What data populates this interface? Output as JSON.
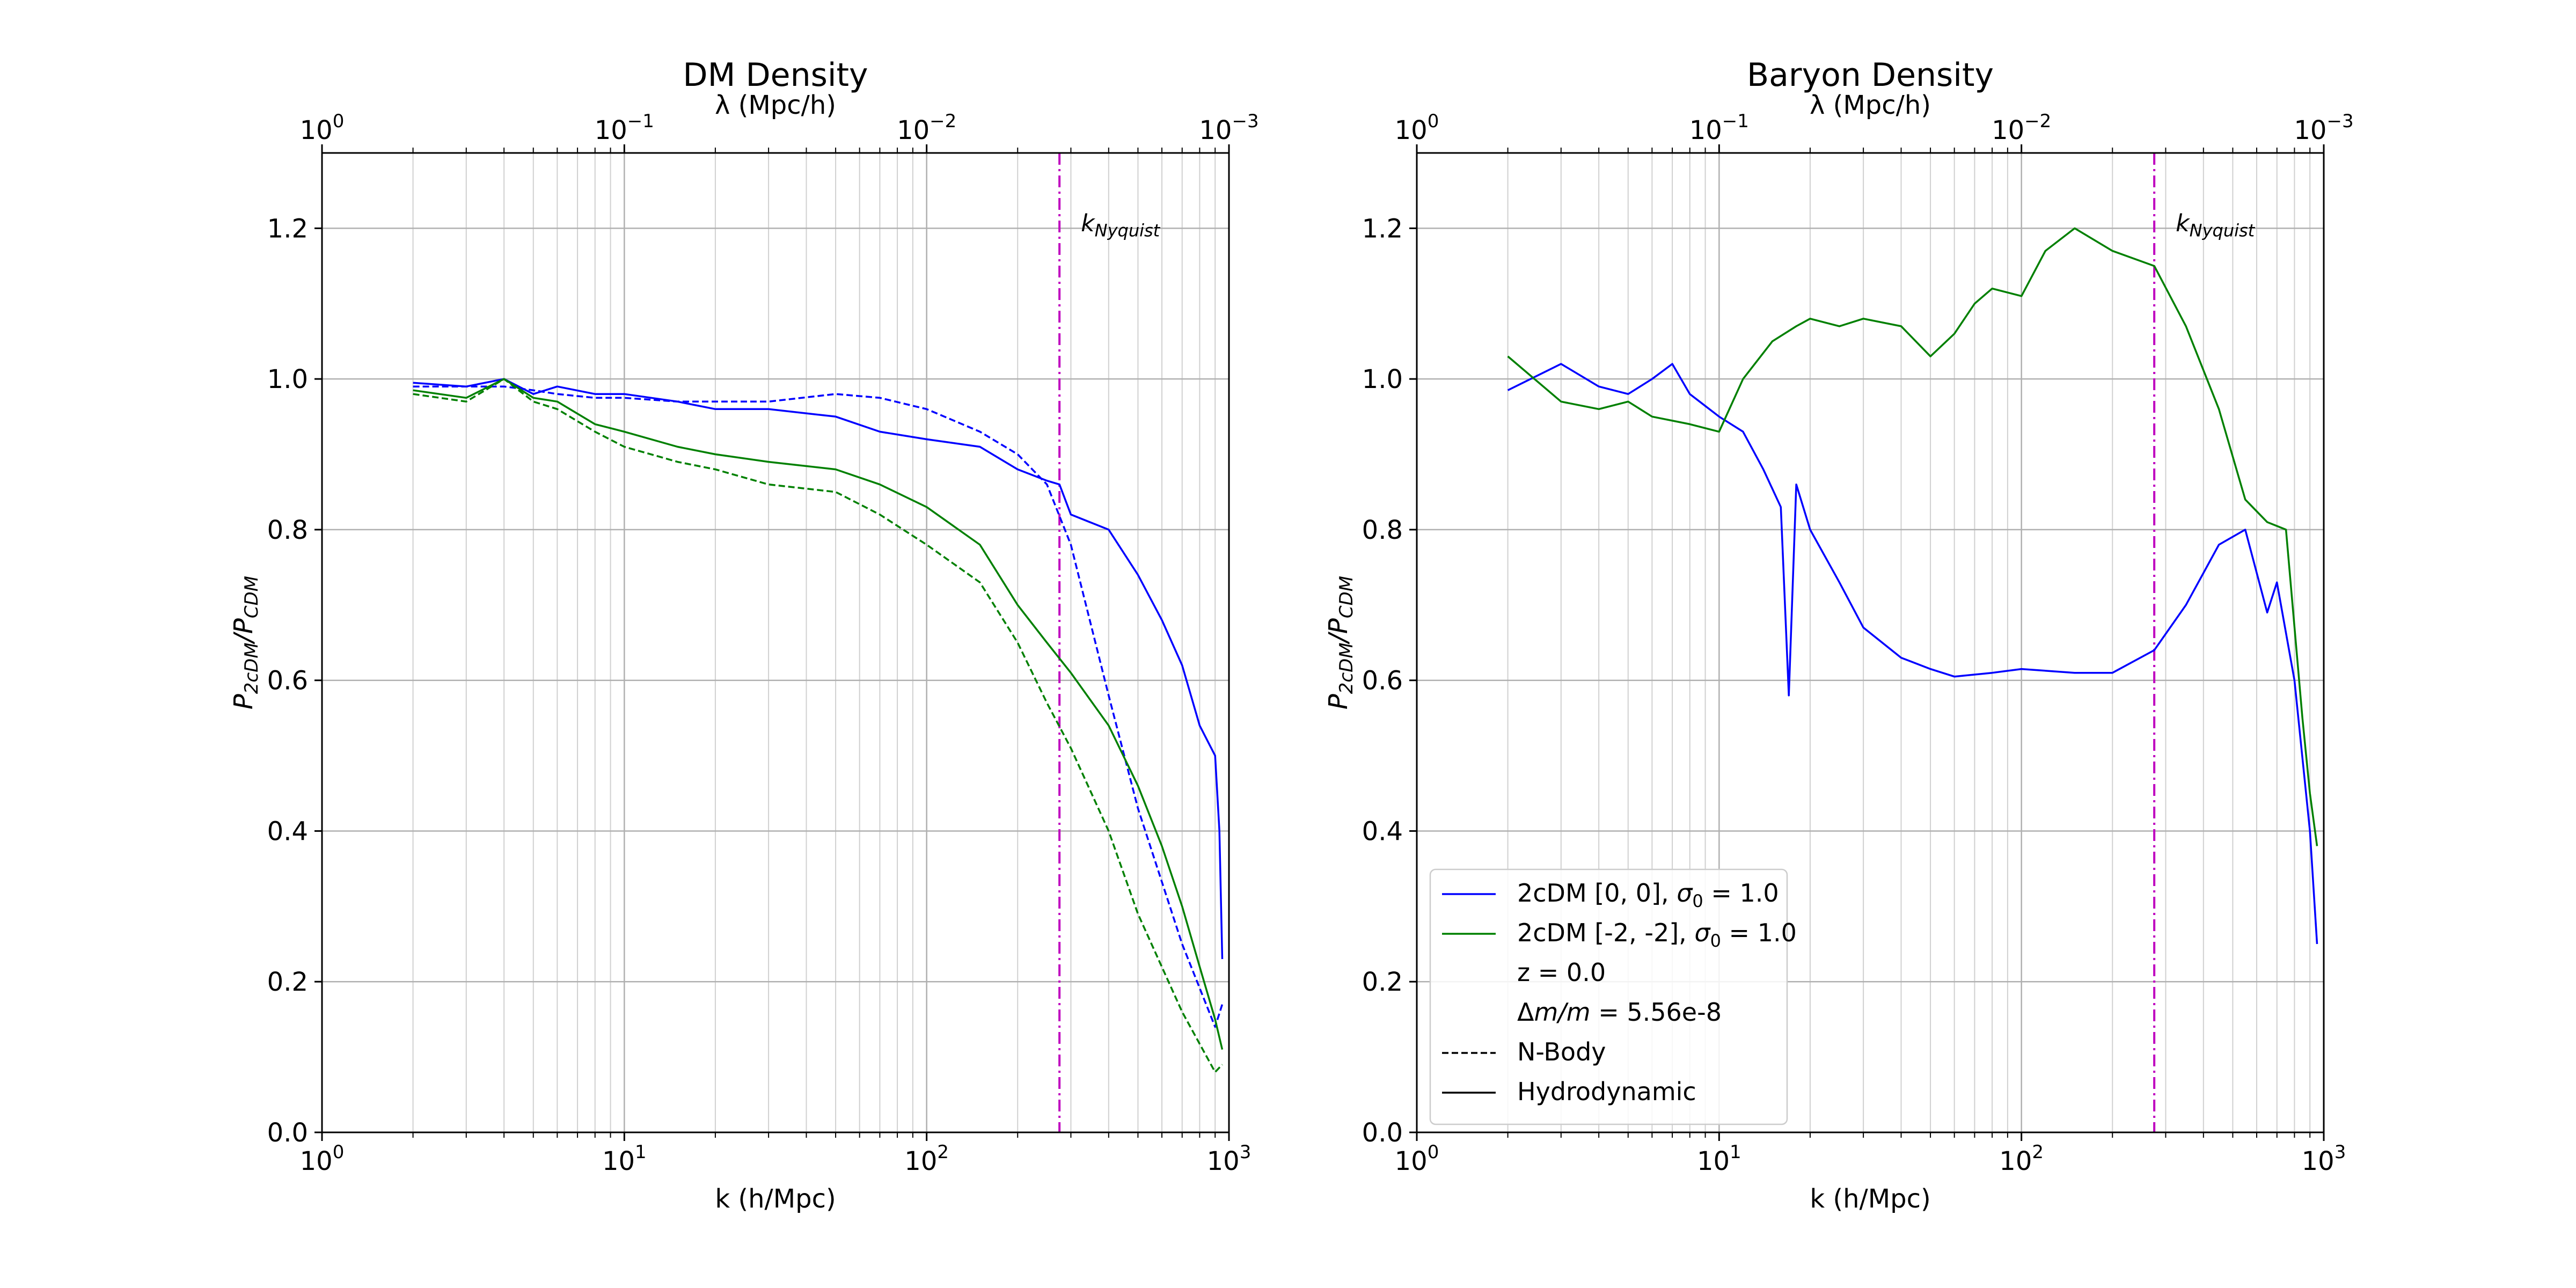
{
  "chart_data": [
    {
      "type": "line",
      "title": "DM Density",
      "xlabel": "k (h/Mpc)",
      "ylabel_main": "P",
      "ylabel_num_sub": "2cDM",
      "ylabel_den_sub": "CDM",
      "top_xlabel": "λ (Mpc/h)",
      "xscale": "log",
      "xlim": [
        1,
        1000
      ],
      "ylim": [
        0.0,
        1.3
      ],
      "yticks": [
        "0.0",
        "0.2",
        "0.4",
        "0.6",
        "0.8",
        "1.0",
        "1.2"
      ],
      "xtick_bases": [
        "10",
        "10",
        "10",
        "10"
      ],
      "xtick_exps": [
        "0",
        "1",
        "2",
        "3"
      ],
      "top_tick_bases": [
        "10",
        "10",
        "10",
        "10"
      ],
      "top_tick_exps": [
        "0",
        "−1",
        "−2",
        "−3"
      ],
      "grid": true,
      "nyquist_k": 275,
      "nyquist_label_main": "k",
      "nyquist_label_sub": "Nyquist",
      "nyquist_color": "#bf00bf",
      "series": [
        {
          "color": "#0000ff",
          "style": "dashed",
          "x": [
            2,
            3,
            4,
            5,
            6,
            8,
            10,
            15,
            20,
            30,
            50,
            70,
            100,
            150,
            200,
            250,
            300,
            400,
            500,
            700,
            900,
            950
          ],
          "y": [
            0.99,
            0.99,
            0.99,
            0.985,
            0.98,
            0.975,
            0.975,
            0.97,
            0.97,
            0.97,
            0.98,
            0.975,
            0.96,
            0.93,
            0.9,
            0.86,
            0.78,
            0.58,
            0.43,
            0.25,
            0.14,
            0.17
          ]
        },
        {
          "color": "#0000ff",
          "style": "solid",
          "x": [
            2,
            3,
            4,
            5,
            6,
            8,
            10,
            15,
            20,
            30,
            50,
            70,
            100,
            150,
            200,
            250,
            275,
            300,
            400,
            500,
            600,
            700,
            800,
            900,
            930,
            950
          ],
          "y": [
            0.995,
            0.99,
            1.0,
            0.98,
            0.99,
            0.98,
            0.98,
            0.97,
            0.96,
            0.96,
            0.95,
            0.93,
            0.92,
            0.91,
            0.88,
            0.865,
            0.86,
            0.82,
            0.8,
            0.74,
            0.68,
            0.62,
            0.54,
            0.5,
            0.4,
            0.23
          ]
        },
        {
          "color": "#008000",
          "style": "dashed",
          "x": [
            2,
            3,
            4,
            5,
            6,
            8,
            10,
            15,
            20,
            30,
            50,
            70,
            100,
            150,
            200,
            250,
            300,
            400,
            500,
            700,
            900,
            950
          ],
          "y": [
            0.98,
            0.97,
            1.0,
            0.97,
            0.96,
            0.93,
            0.91,
            0.89,
            0.88,
            0.86,
            0.85,
            0.82,
            0.78,
            0.73,
            0.65,
            0.57,
            0.51,
            0.4,
            0.29,
            0.16,
            0.08,
            0.09
          ]
        },
        {
          "color": "#008000",
          "style": "solid",
          "x": [
            2,
            3,
            4,
            5,
            6,
            8,
            10,
            15,
            20,
            30,
            50,
            70,
            100,
            150,
            200,
            250,
            300,
            400,
            500,
            600,
            700,
            800,
            900,
            950
          ],
          "y": [
            0.985,
            0.975,
            1.0,
            0.975,
            0.97,
            0.94,
            0.93,
            0.91,
            0.9,
            0.89,
            0.88,
            0.86,
            0.83,
            0.78,
            0.7,
            0.65,
            0.61,
            0.54,
            0.46,
            0.38,
            0.3,
            0.22,
            0.15,
            0.11
          ]
        }
      ]
    },
    {
      "type": "line",
      "title": "Baryon Density",
      "xlabel": "k (h/Mpc)",
      "ylabel_main": "P",
      "ylabel_num_sub": "2cDM",
      "ylabel_den_sub": "CDM",
      "top_xlabel": "λ (Mpc/h)",
      "xscale": "log",
      "xlim": [
        1,
        1000
      ],
      "ylim": [
        0.0,
        1.3
      ],
      "yticks": [
        "0.0",
        "0.2",
        "0.4",
        "0.6",
        "0.8",
        "1.0",
        "1.2"
      ],
      "xtick_bases": [
        "10",
        "10",
        "10",
        "10"
      ],
      "xtick_exps": [
        "0",
        "1",
        "2",
        "3"
      ],
      "top_tick_bases": [
        "10",
        "10",
        "10",
        "10"
      ],
      "top_tick_exps": [
        "0",
        "−1",
        "−2",
        "−3"
      ],
      "grid": true,
      "nyquist_k": 275,
      "nyquist_label_main": "k",
      "nyquist_label_sub": "Nyquist",
      "nyquist_color": "#bf00bf",
      "legend_position": "lower-left",
      "legend": [
        {
          "text_pre": "2cDM [0, 0], ",
          "symbol": "σ",
          "symbol_sub": "0",
          "text_post": " =  1.0",
          "color": "#0000ff",
          "style": "solid"
        },
        {
          "text_pre": "2cDM [-2, -2], ",
          "symbol": "σ",
          "symbol_sub": "0",
          "text_post": " =  1.0",
          "color": "#008000",
          "style": "solid"
        },
        {
          "text_pre": "z = 0.0",
          "color": "none"
        },
        {
          "text_pre": "Δ",
          "italic": "m/m",
          "text_post": " = 5.56e-8",
          "color": "none"
        },
        {
          "text_pre": "N-Body",
          "color": "#000000",
          "style": "dashed"
        },
        {
          "text_pre": "Hydrodynamic",
          "color": "#000000",
          "style": "solid"
        }
      ],
      "series": [
        {
          "color": "#0000ff",
          "style": "solid",
          "x": [
            2,
            3,
            4,
            5,
            6,
            7,
            8,
            10,
            12,
            14,
            16,
            17,
            18,
            20,
            25,
            30,
            40,
            50,
            60,
            80,
            100,
            150,
            200,
            275,
            350,
            450,
            550,
            650,
            700,
            800,
            900,
            950
          ],
          "y": [
            0.985,
            1.02,
            0.99,
            0.98,
            1.0,
            1.02,
            0.98,
            0.95,
            0.93,
            0.88,
            0.83,
            0.58,
            0.86,
            0.8,
            0.73,
            0.67,
            0.63,
            0.615,
            0.605,
            0.61,
            0.615,
            0.61,
            0.61,
            0.64,
            0.7,
            0.78,
            0.8,
            0.69,
            0.73,
            0.6,
            0.4,
            0.25
          ]
        },
        {
          "color": "#008000",
          "style": "solid",
          "x": [
            2,
            3,
            4,
            5,
            6,
            8,
            10,
            12,
            15,
            18,
            20,
            25,
            30,
            40,
            50,
            60,
            70,
            80,
            100,
            120,
            150,
            200,
            275,
            350,
            450,
            550,
            650,
            750,
            850,
            900,
            950
          ],
          "y": [
            1.03,
            0.97,
            0.96,
            0.97,
            0.95,
            0.94,
            0.93,
            1.0,
            1.05,
            1.07,
            1.08,
            1.07,
            1.08,
            1.07,
            1.03,
            1.06,
            1.1,
            1.12,
            1.11,
            1.17,
            1.2,
            1.17,
            1.15,
            1.07,
            0.96,
            0.84,
            0.81,
            0.8,
            0.55,
            0.45,
            0.38
          ]
        }
      ]
    }
  ]
}
